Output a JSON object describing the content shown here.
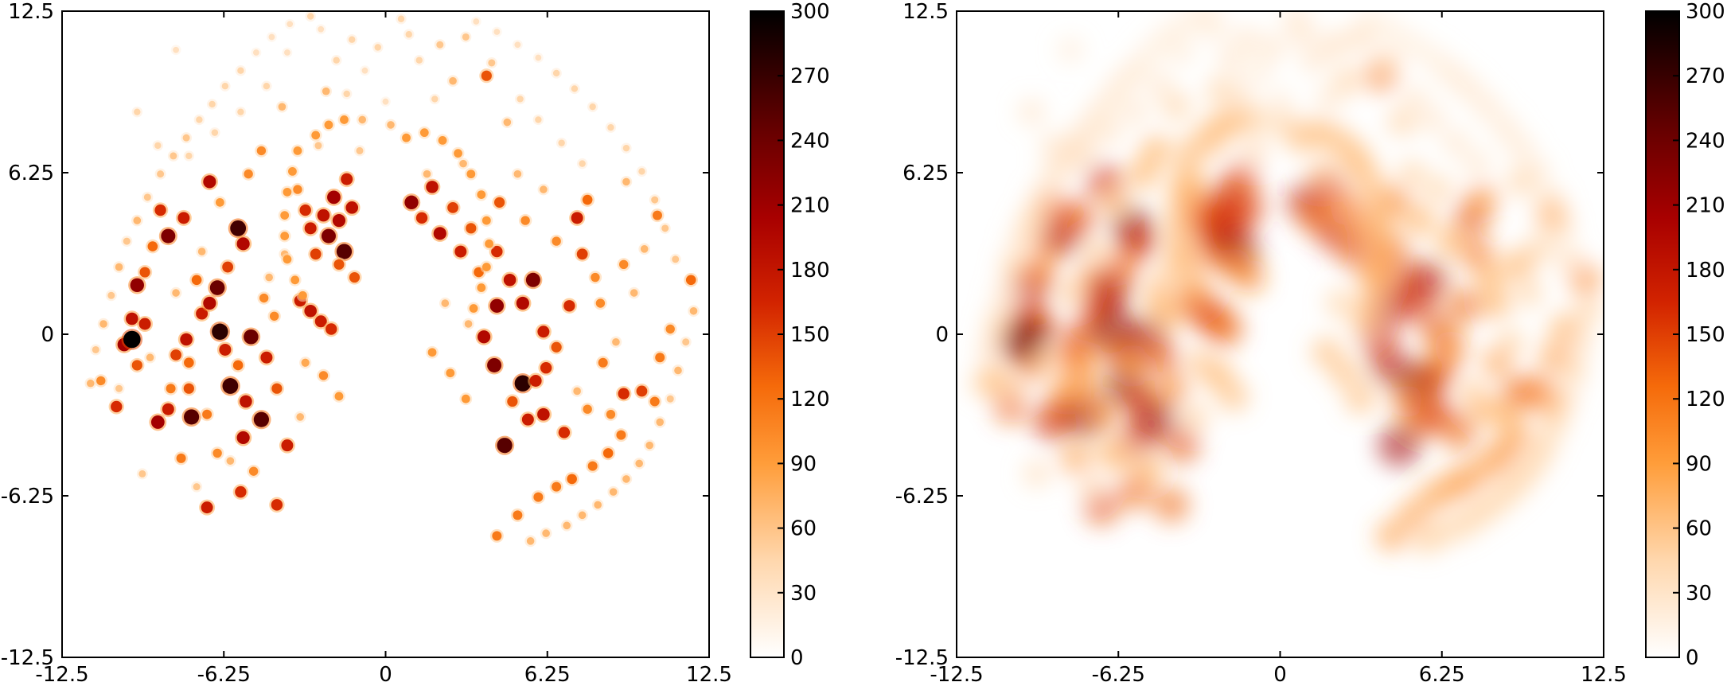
{
  "chart_data": [
    {
      "type": "heatmap",
      "title": "",
      "xlabel": "",
      "ylabel": "",
      "xlim": [
        -12.5,
        12.5
      ],
      "ylim": [
        -12.5,
        12.5
      ],
      "x_ticks": [
        "-12.5",
        "-6.25",
        "0",
        "6.25",
        "12.5"
      ],
      "y_ticks": [
        "-12.5",
        "-6.25",
        "0",
        "6.25",
        "12.5"
      ],
      "grid": false,
      "colormap": "gist_heat_r",
      "colorbar": {
        "range": [
          0,
          300
        ],
        "ticks": [
          "0",
          "30",
          "60",
          "90",
          "120",
          "150",
          "180",
          "210",
          "240",
          "270",
          "300"
        ]
      },
      "render": "sharp"
    },
    {
      "type": "heatmap",
      "title": "",
      "xlabel": "",
      "ylabel": "",
      "xlim": [
        -12.5,
        12.5
      ],
      "ylim": [
        -12.5,
        12.5
      ],
      "x_ticks": [
        "-12.5",
        "-6.25",
        "0",
        "6.25",
        "12.5"
      ],
      "y_ticks": [
        "-12.5",
        "-6.25",
        "0",
        "6.25",
        "12.5"
      ],
      "grid": false,
      "colormap": "gist_heat_r",
      "colorbar": {
        "range": [
          0,
          300
        ],
        "ticks": [
          "0",
          "30",
          "60",
          "90",
          "120",
          "150",
          "180",
          "210",
          "240",
          "270",
          "300"
        ]
      },
      "render": "smoothed"
    }
  ],
  "points": [
    [
      -11,
      -1.8,
      90
    ],
    [
      -10.4,
      -2.8,
      140
    ],
    [
      -10.1,
      -0.4,
      180
    ],
    [
      -9.8,
      0.6,
      160
    ],
    [
      -9.6,
      -1.2,
      120
    ],
    [
      -9.3,
      0.4,
      150
    ],
    [
      -9.8,
      -0.2,
      260
    ],
    [
      -9.6,
      1.9,
      190
    ],
    [
      -9.3,
      2.4,
      120
    ],
    [
      -9,
      3.4,
      110
    ],
    [
      -8.7,
      4.8,
      140
    ],
    [
      -8.4,
      3.8,
      200
    ],
    [
      -8.8,
      -3.4,
      180
    ],
    [
      -8.4,
      -2.9,
      150
    ],
    [
      -8.1,
      -0.8,
      130
    ],
    [
      -7.7,
      -0.2,
      160
    ],
    [
      -7.6,
      -1.1,
      110
    ],
    [
      -7.5,
      -3.2,
      220
    ],
    [
      -7.3,
      2.1,
      110
    ],
    [
      -7.1,
      0.8,
      150
    ],
    [
      -6.8,
      1.2,
      170
    ],
    [
      -6.4,
      0.1,
      240
    ],
    [
      -6.2,
      -0.6,
      150
    ],
    [
      -6.5,
      1.8,
      210
    ],
    [
      -6,
      -2,
      230
    ],
    [
      -5.7,
      -1.2,
      110
    ],
    [
      -5.5,
      -4,
      170
    ],
    [
      -5.4,
      -2.6,
      160
    ],
    [
      -5.2,
      -0.1,
      210
    ],
    [
      -4.8,
      -3.3,
      220
    ],
    [
      -4.6,
      -0.9,
      150
    ],
    [
      -4.2,
      -2.1,
      120
    ],
    [
      -3.8,
      -4.3,
      150
    ],
    [
      -6.9,
      -6.7,
      150
    ],
    [
      -5.6,
      -6.1,
      140
    ],
    [
      -4.2,
      -6.6,
      140
    ],
    [
      -7.8,
      4.5,
      150
    ],
    [
      -6.8,
      5.9,
      170
    ],
    [
      -5.7,
      4.1,
      230
    ],
    [
      -5.5,
      3.5,
      170
    ],
    [
      -6.1,
      2.6,
      130
    ],
    [
      -5.3,
      6.2,
      90
    ],
    [
      -4.8,
      7.1,
      90
    ],
    [
      -3.4,
      5.6,
      90
    ],
    [
      -3.1,
      4.8,
      140
    ],
    [
      -2.9,
      4.1,
      150
    ],
    [
      -2.7,
      3.1,
      130
    ],
    [
      -2.4,
      4.6,
      160
    ],
    [
      -2.2,
      3.8,
      200
    ],
    [
      -2,
      5.3,
      180
    ],
    [
      -1.8,
      4.4,
      170
    ],
    [
      -1.6,
      3.2,
      220
    ],
    [
      -1.5,
      6,
      150
    ],
    [
      -1.3,
      4.9,
      160
    ],
    [
      -1.2,
      2.2,
      120
    ],
    [
      -1.8,
      2.7,
      120
    ],
    [
      -3.3,
      1.3,
      150
    ],
    [
      -2.9,
      0.9,
      160
    ],
    [
      -2.5,
      0.5,
      150
    ],
    [
      -2.1,
      0.2,
      140
    ],
    [
      1,
      5.1,
      190
    ],
    [
      1.4,
      4.5,
      140
    ],
    [
      1.8,
      5.7,
      160
    ],
    [
      2.1,
      3.9,
      170
    ],
    [
      2.6,
      4.9,
      130
    ],
    [
      2.9,
      3.2,
      150
    ],
    [
      3.3,
      4.1,
      120
    ],
    [
      3.6,
      2.4,
      110
    ],
    [
      4.3,
      3.2,
      140
    ],
    [
      4.4,
      5.1,
      120
    ],
    [
      4.8,
      2.1,
      160
    ],
    [
      5.3,
      1.2,
      170
    ],
    [
      5.7,
      2.1,
      200
    ],
    [
      6.1,
      0.1,
      150
    ],
    [
      6.2,
      -1.3,
      140
    ],
    [
      5.3,
      -1.9,
      240
    ],
    [
      4.9,
      -2.6,
      120
    ],
    [
      4.6,
      -4.3,
      220
    ],
    [
      4.2,
      -1.2,
      200
    ],
    [
      3.8,
      -0.1,
      170
    ],
    [
      4.3,
      1.1,
      190
    ],
    [
      5.5,
      -3.3,
      150
    ],
    [
      6.1,
      -3.1,
      160
    ],
    [
      6.9,
      -3.8,
      140
    ],
    [
      5.8,
      -1.8,
      150
    ],
    [
      6.6,
      -0.5,
      120
    ],
    [
      7.1,
      1.1,
      140
    ],
    [
      7.6,
      3.1,
      130
    ],
    [
      7.4,
      4.5,
      150
    ],
    [
      7.8,
      5.2,
      110
    ],
    [
      8.1,
      2.2,
      90
    ],
    [
      8.4,
      -1.1,
      100
    ],
    [
      9.2,
      -2.3,
      140
    ],
    [
      9.9,
      -2.2,
      130
    ],
    [
      10.4,
      -2.6,
      100
    ],
    [
      10.6,
      -0.9,
      100
    ],
    [
      11,
      0.2,
      90
    ],
    [
      11.8,
      2.1,
      110
    ],
    [
      10.5,
      4.6,
      100
    ],
    [
      9.1,
      -3.9,
      100
    ],
    [
      8.6,
      -4.6,
      110
    ],
    [
      8,
      -5.1,
      100
    ],
    [
      7.2,
      -5.6,
      110
    ],
    [
      6.6,
      -5.9,
      100
    ],
    [
      5.9,
      -6.3,
      100
    ],
    [
      5.1,
      -7,
      100
    ],
    [
      4.3,
      -7.8,
      100
    ],
    [
      3.9,
      10,
      120
    ],
    [
      -2.9,
      12.3,
      40
    ],
    [
      -2.5,
      11.8,
      30
    ],
    [
      -1.3,
      11.4,
      40
    ],
    [
      0.6,
      12.2,
      40
    ],
    [
      1.3,
      10.6,
      40
    ],
    [
      2.1,
      11.2,
      50
    ],
    [
      3.1,
      11.5,
      50
    ],
    [
      4.1,
      10.5,
      50
    ],
    [
      5.2,
      9.1,
      40
    ],
    [
      5.9,
      8.3,
      40
    ],
    [
      6.8,
      7.4,
      40
    ],
    [
      7.6,
      6.6,
      40
    ],
    [
      -3.8,
      10.9,
      30
    ],
    [
      -4.6,
      9.6,
      40
    ],
    [
      -5.6,
      8.6,
      40
    ],
    [
      -6.6,
      7.8,
      40
    ],
    [
      -7.6,
      6.9,
      40
    ],
    [
      -8.8,
      7.3,
      40
    ],
    [
      -9.6,
      8.6,
      40
    ],
    [
      -8.1,
      11,
      30
    ],
    [
      -1.5,
      9.3,
      40
    ],
    [
      1.9,
      9.1,
      40
    ],
    [
      0,
      9,
      30
    ],
    [
      -0.8,
      10.2,
      30
    ],
    [
      -7.1,
      3.2,
      60
    ],
    [
      -8.1,
      1.6,
      60
    ],
    [
      -9.1,
      -0.9,
      60
    ],
    [
      -10.3,
      -2.1,
      50
    ],
    [
      -9.4,
      -5.4,
      50
    ],
    [
      -7.3,
      -5.9,
      50
    ],
    [
      -6,
      -4.9,
      60
    ],
    [
      -3.3,
      -3.2,
      60
    ],
    [
      -3.1,
      -1.1,
      70
    ],
    [
      2.3,
      1.2,
      60
    ],
    [
      3.2,
      0.4,
      60
    ],
    [
      7.4,
      -2.2,
      60
    ],
    [
      8.9,
      -0.3,
      60
    ],
    [
      9.6,
      1.6,
      60
    ],
    [
      10,
      3.3,
      60
    ],
    [
      -4.5,
      2.2,
      60
    ],
    [
      -3.9,
      3.1,
      60
    ],
    [
      1.6,
      6.2,
      60
    ],
    [
      3,
      6.6,
      60
    ],
    [
      -1,
      7.1,
      50
    ],
    [
      -2.6,
      7.3,
      50
    ],
    [
      6.1,
      5.6,
      60
    ],
    [
      5.1,
      6.2,
      60
    ],
    [
      9.3,
      5.9,
      60
    ]
  ],
  "scatter_points": [
    [
      -11.4,
      -1.9,
      60
    ],
    [
      -11.2,
      -0.6,
      50
    ],
    [
      -10.9,
      0.4,
      60
    ],
    [
      -10.6,
      1.5,
      50
    ],
    [
      -10.3,
      2.6,
      60
    ],
    [
      -10,
      3.6,
      50
    ],
    [
      -9.6,
      4.4,
      60
    ],
    [
      -9.2,
      5.3,
      50
    ],
    [
      -8.7,
      6.2,
      50
    ],
    [
      -8.2,
      6.9,
      50
    ],
    [
      -7.7,
      7.6,
      50
    ],
    [
      -7.2,
      8.3,
      40
    ],
    [
      -6.7,
      8.9,
      40
    ],
    [
      -6.2,
      9.6,
      40
    ],
    [
      -5.6,
      10.2,
      40
    ],
    [
      -5,
      10.9,
      30
    ],
    [
      -4.4,
      11.5,
      30
    ],
    [
      -3.7,
      12,
      30
    ],
    [
      11.9,
      0.9,
      60
    ],
    [
      11.6,
      -0.3,
      50
    ],
    [
      11.3,
      -1.4,
      60
    ],
    [
      11,
      -2.5,
      50
    ],
    [
      10.6,
      -3.4,
      60
    ],
    [
      10.2,
      -4.3,
      60
    ],
    [
      9.8,
      -5,
      60
    ],
    [
      9.3,
      -5.6,
      60
    ],
    [
      8.8,
      -6.1,
      60
    ],
    [
      8.2,
      -6.6,
      60
    ],
    [
      7.6,
      -7,
      60
    ],
    [
      7,
      -7.4,
      60
    ],
    [
      6.2,
      -7.7,
      60
    ],
    [
      5.6,
      -8,
      60
    ],
    [
      11.2,
      2.9,
      50
    ],
    [
      10.8,
      4.1,
      50
    ],
    [
      10.4,
      5.2,
      50
    ],
    [
      9.9,
      6.3,
      40
    ],
    [
      9.3,
      7.2,
      40
    ],
    [
      8.7,
      8,
      40
    ],
    [
      8,
      8.8,
      40
    ],
    [
      7.3,
      9.5,
      40
    ],
    [
      6.6,
      10.1,
      40
    ],
    [
      5.9,
      10.7,
      30
    ],
    [
      5.1,
      11.2,
      30
    ],
    [
      4.3,
      11.7,
      30
    ],
    [
      3.5,
      12.1,
      30
    ],
    [
      -3.4,
      7.1,
      80
    ],
    [
      -3.6,
      6.3,
      80
    ],
    [
      -3.8,
      5.5,
      80
    ],
    [
      -3.9,
      4.6,
      80
    ],
    [
      -3.9,
      3.8,
      80
    ],
    [
      -3.8,
      2.9,
      80
    ],
    [
      -3.5,
      2.1,
      80
    ],
    [
      -3.2,
      1.5,
      80
    ],
    [
      -2.7,
      7.7,
      80
    ],
    [
      -2.2,
      8.1,
      80
    ],
    [
      -1.6,
      8.3,
      80
    ],
    [
      0.8,
      7.6,
      80
    ],
    [
      1.5,
      7.8,
      80
    ],
    [
      2.2,
      7.5,
      80
    ],
    [
      2.8,
      7,
      80
    ],
    [
      3.3,
      6.2,
      80
    ],
    [
      3.7,
      5.4,
      80
    ],
    [
      3.9,
      4.4,
      80
    ],
    [
      4,
      3.5,
      80
    ],
    [
      3.9,
      2.6,
      80
    ],
    [
      3.7,
      1.8,
      80
    ],
    [
      3.4,
      1,
      80
    ],
    [
      -0.9,
      8.3,
      60
    ],
    [
      0.2,
      8.1,
      60
    ],
    [
      -7.6,
      -2.1,
      120
    ],
    [
      -6.9,
      -3.1,
      100
    ],
    [
      -7.9,
      -4.8,
      100
    ],
    [
      -8.3,
      -2.1,
      100
    ],
    [
      -6.5,
      -4.6,
      90
    ],
    [
      -5.1,
      -5.3,
      90
    ],
    [
      -4.7,
      1.4,
      90
    ],
    [
      -4.3,
      0.7,
      90
    ],
    [
      -2.4,
      -1.6,
      90
    ],
    [
      -1.8,
      -2.4,
      80
    ],
    [
      1.8,
      -0.7,
      80
    ],
    [
      2.5,
      -1.5,
      80
    ],
    [
      3.1,
      -2.5,
      80
    ],
    [
      7.8,
      -2.9,
      90
    ],
    [
      8.7,
      -3.1,
      90
    ],
    [
      8.3,
      1.2,
      90
    ],
    [
      9.2,
      2.7,
      90
    ],
    [
      6.6,
      3.6,
      90
    ],
    [
      5.4,
      4.4,
      90
    ],
    [
      -2.3,
      9.4,
      60
    ],
    [
      2.6,
      9.8,
      60
    ],
    [
      -0.3,
      11.1,
      40
    ],
    [
      0.9,
      11.6,
      40
    ],
    [
      -1.9,
      10.6,
      40
    ],
    [
      -4,
      8.8,
      60
    ],
    [
      4.7,
      8.2,
      60
    ],
    [
      -6.4,
      5.1,
      80
    ]
  ]
}
